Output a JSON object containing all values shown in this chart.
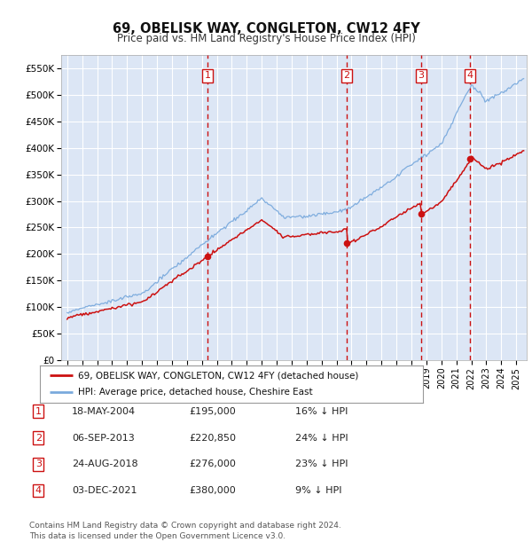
{
  "title": "69, OBELISK WAY, CONGLETON, CW12 4FY",
  "subtitle": "Price paid vs. HM Land Registry's House Price Index (HPI)",
  "ylim": [
    0,
    575000
  ],
  "yticks": [
    0,
    50000,
    100000,
    150000,
    200000,
    250000,
    300000,
    350000,
    400000,
    450000,
    500000,
    550000
  ],
  "ytick_labels": [
    "£0",
    "£50K",
    "£100K",
    "£150K",
    "£200K",
    "£250K",
    "£300K",
    "£350K",
    "£400K",
    "£450K",
    "£500K",
    "£550K"
  ],
  "background_color": "#dce6f5",
  "grid_color": "#ffffff",
  "hpi_color": "#7aaadd",
  "price_color": "#cc1111",
  "purchases": [
    {
      "label": 1,
      "date_num": 2004.37,
      "price": 195000,
      "date_str": "18-MAY-2004",
      "price_str": "£195,000",
      "pct": "16% ↓ HPI"
    },
    {
      "label": 2,
      "date_num": 2013.68,
      "price": 220850,
      "date_str": "06-SEP-2013",
      "price_str": "£220,850",
      "pct": "24% ↓ HPI"
    },
    {
      "label": 3,
      "date_num": 2018.65,
      "price": 276000,
      "date_str": "24-AUG-2018",
      "price_str": "£276,000",
      "pct": "23% ↓ HPI"
    },
    {
      "label": 4,
      "date_num": 2021.92,
      "price": 380000,
      "date_str": "03-DEC-2021",
      "price_str": "£380,000",
      "pct": "9% ↓ HPI"
    }
  ],
  "footer": "Contains HM Land Registry data © Crown copyright and database right 2024.\nThis data is licensed under the Open Government Licence v3.0.",
  "legend_entries": [
    "69, OBELISK WAY, CONGLETON, CW12 4FY (detached house)",
    "HPI: Average price, detached house, Cheshire East"
  ],
  "xlim_left": 1994.6,
  "xlim_right": 2025.7
}
